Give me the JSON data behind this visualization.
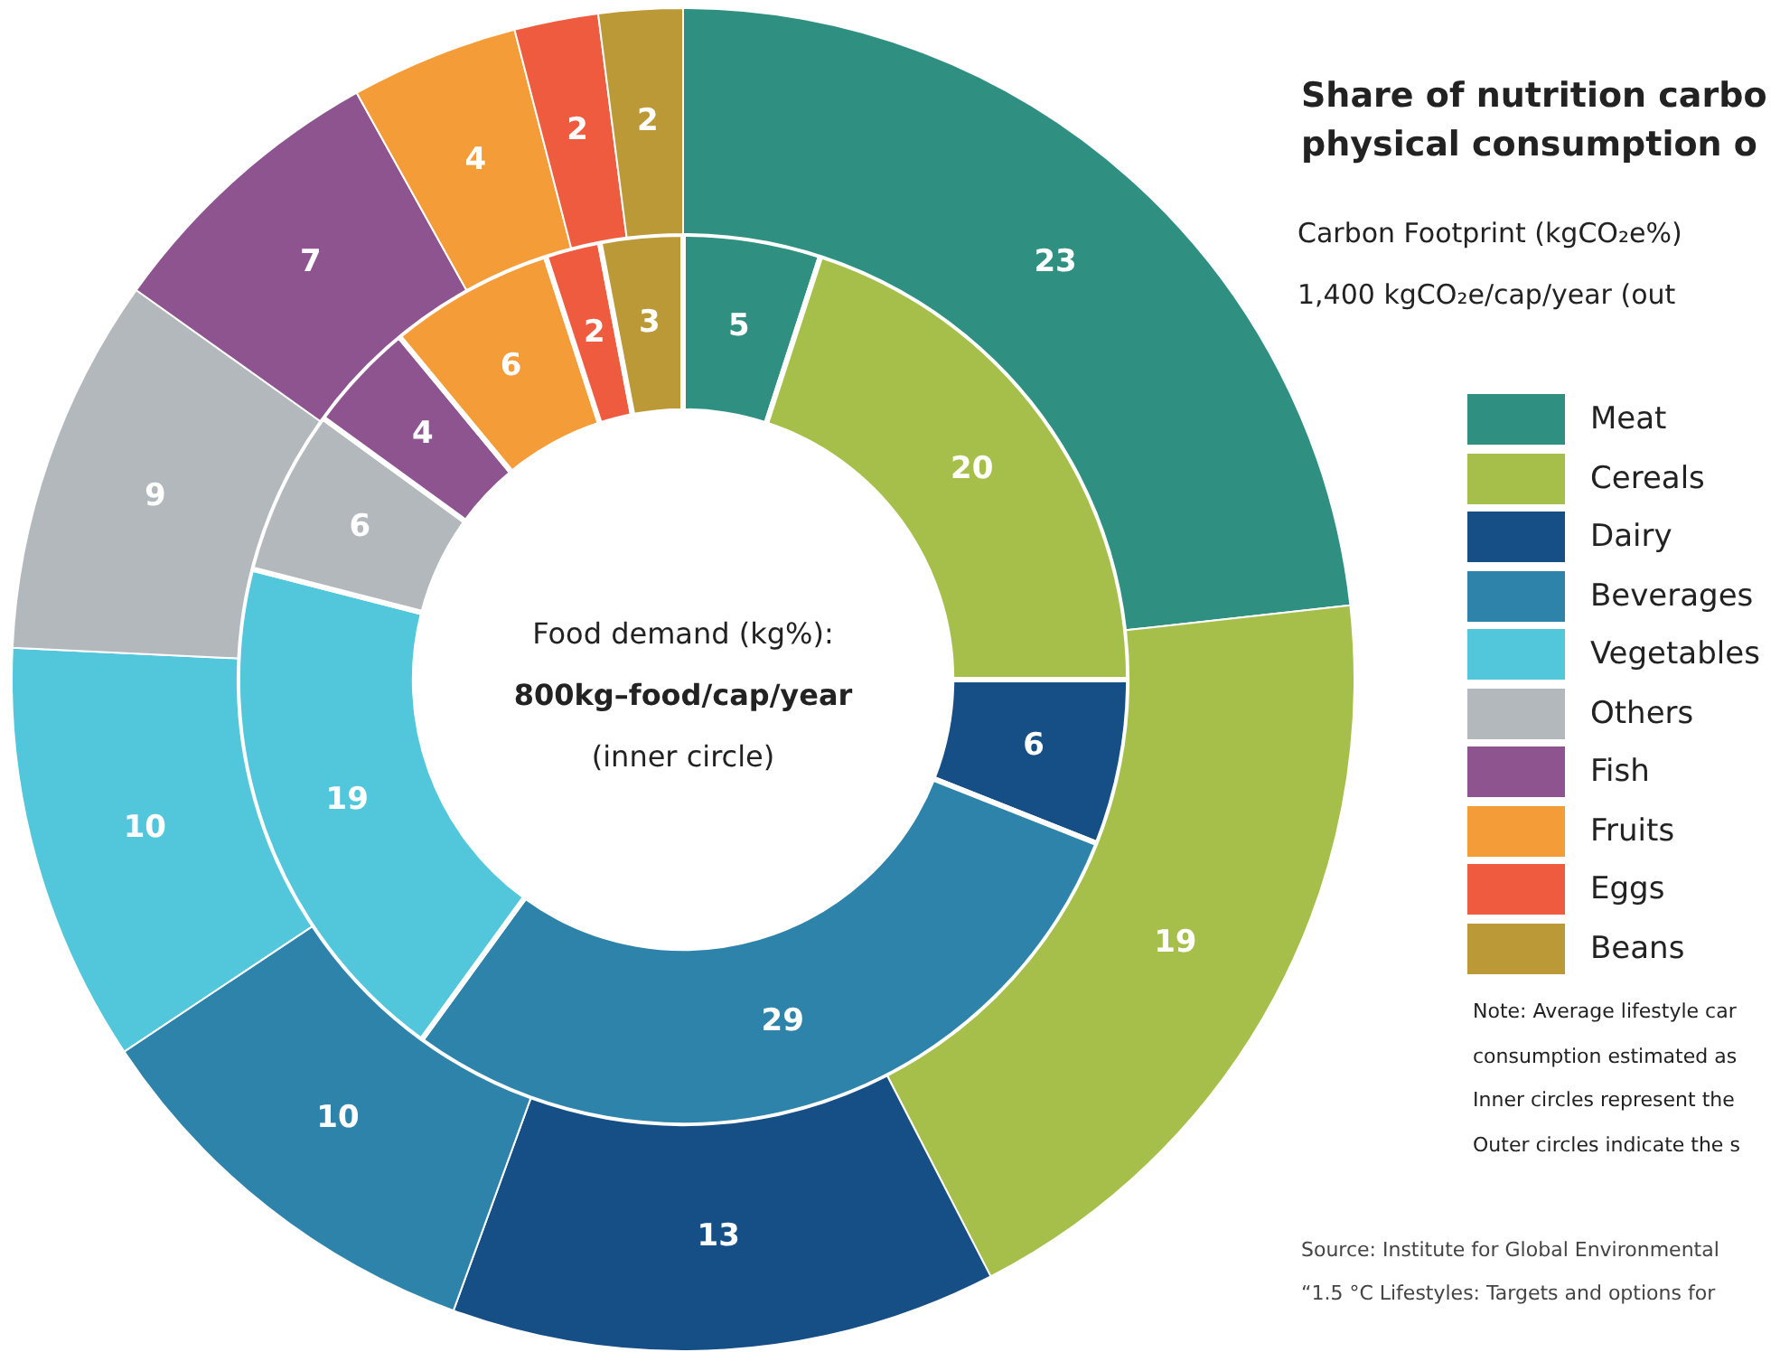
{
  "chart_data": {
    "type": "donut",
    "title": "Share of nutrition carbo\nphysical consumption o",
    "subtitle": "Carbon Footprint (kgCO₂e%)\n1,400 kgCO₂e/cap/year (out",
    "categories": [
      "Meat",
      "Cereals",
      "Dairy",
      "Beverages",
      "Vegetables",
      "Others",
      "Fish",
      "Fruits",
      "Eggs",
      "Beans"
    ],
    "colors": [
      "#2f8f80",
      "#a6bf4a",
      "#164f86",
      "#2e83ab",
      "#52c6da",
      "#b2b8bb",
      "#8e5490",
      "#f49c38",
      "#ef5b3f",
      "#bb9936"
    ],
    "series": [
      {
        "values": [
          23,
          19,
          13,
          10,
          10,
          9,
          7,
          4,
          2,
          2
        ]
      },
      {
        "values": [
          5,
          20,
          6,
          29,
          19,
          6,
          4,
          6,
          2,
          3
        ]
      }
    ],
    "data_labels": true,
    "legend": "right",
    "annotations": [
      "Food demand (kg%):",
      "800kg–food/cap/year",
      "(inner circle)",
      "Note: Average lifestyle car",
      "consumption estimated as",
      "Inner circles represent the",
      "Outer circles indicate the s",
      "Source: Institute for Global Environmental",
      "“1.5 °C Lifestyles: Targets and options for"
    ]
  }
}
